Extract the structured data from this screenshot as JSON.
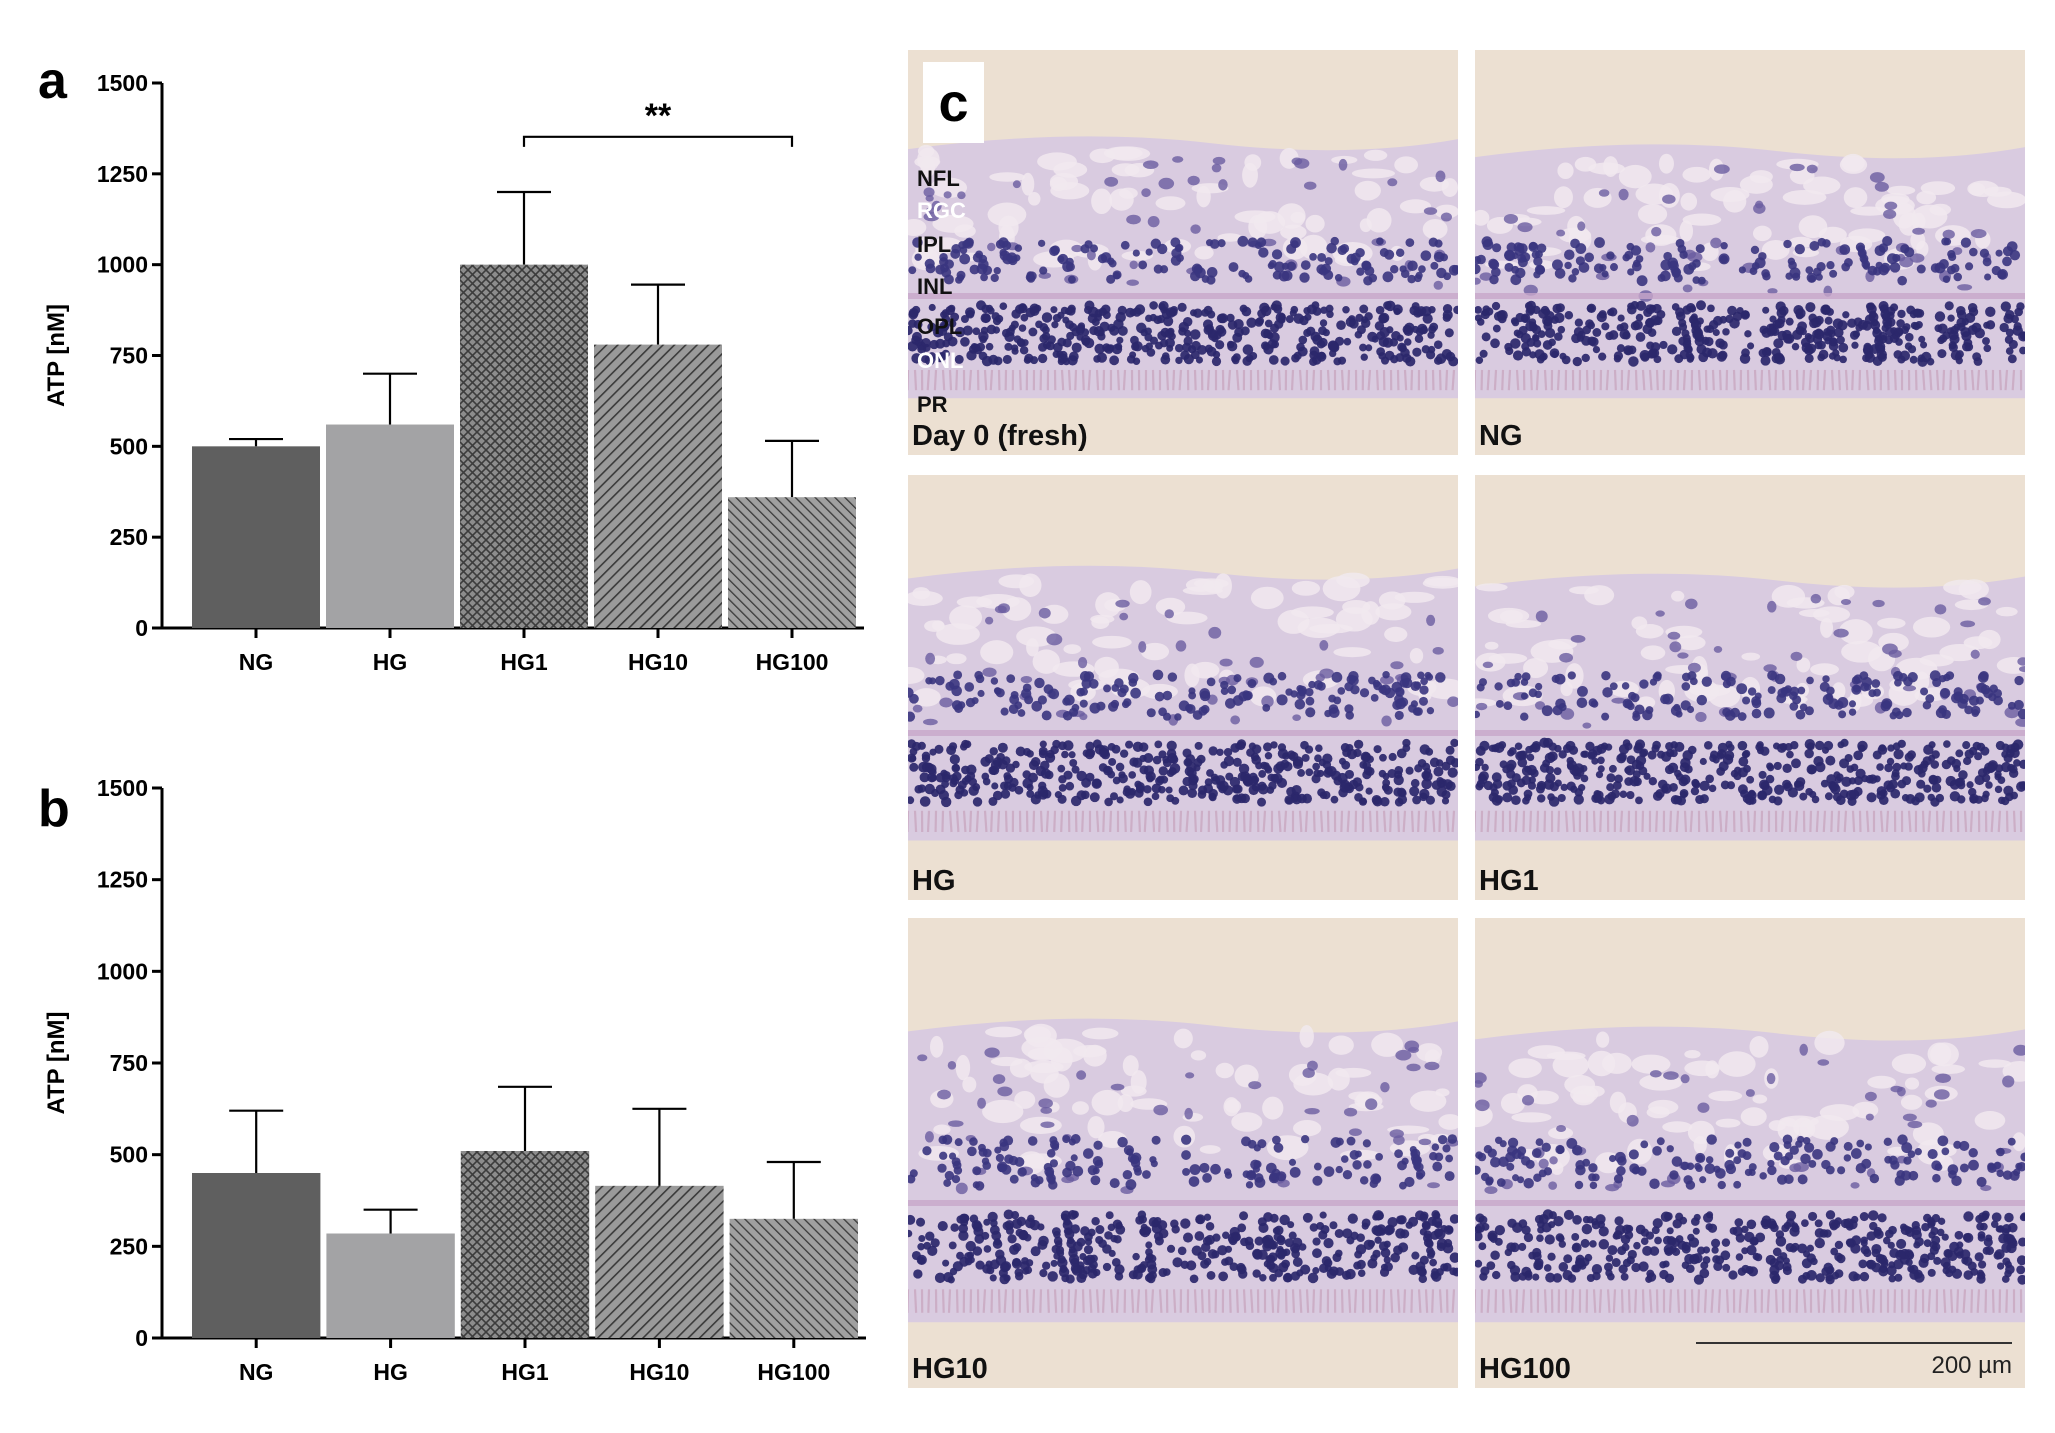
{
  "colors": {
    "NG": "#5f5f5f",
    "HG": "#a3a3a5",
    "hatched": "#8c8c8c",
    "axis": "#000000",
    "tissue_bg": "#e8d8c8",
    "nucleus": "#2e2a6e"
  },
  "panel_c": {
    "label": "c",
    "scale_bar": "200 µm",
    "layers": [
      "NFL",
      "RGC",
      "IPL",
      "INL",
      "OPL",
      "ONL",
      "PR"
    ],
    "panels": [
      {
        "caption": "Day 0 (fresh)"
      },
      {
        "caption": "NG"
      },
      {
        "caption": "HG"
      },
      {
        "caption": "HG1"
      },
      {
        "caption": "HG10"
      },
      {
        "caption": "HG100"
      }
    ]
  },
  "chart_data": [
    {
      "type": "bar",
      "panel_label": "a",
      "categories": [
        "NG",
        "HG",
        "HG1",
        "HG10",
        "HG100"
      ],
      "values": [
        500,
        560,
        1000,
        780,
        360
      ],
      "errors": [
        20,
        140,
        200,
        165,
        155
      ],
      "fills": [
        "solid-dark",
        "solid-light",
        "crosshatch",
        "diagonal",
        "diagonal-fine"
      ],
      "ylabel": "ATP [nM]",
      "ylim": [
        0,
        1500
      ],
      "yticks": [
        0,
        250,
        500,
        750,
        1000,
        1250,
        1500
      ],
      "significance": {
        "from": "HG1",
        "to": "HG100",
        "label": "**"
      },
      "grid": false
    },
    {
      "type": "bar",
      "panel_label": "b",
      "categories": [
        "NG",
        "HG",
        "HG1",
        "HG10",
        "HG100"
      ],
      "values": [
        450,
        285,
        510,
        415,
        325
      ],
      "errors": [
        170,
        65,
        175,
        210,
        155
      ],
      "fills": [
        "solid-dark",
        "solid-light",
        "crosshatch",
        "diagonal",
        "diagonal-fine"
      ],
      "ylabel": "ATP [nM]",
      "ylim": [
        0,
        1500
      ],
      "yticks": [
        0,
        250,
        500,
        750,
        1000,
        1250,
        1500
      ],
      "grid": false
    }
  ]
}
